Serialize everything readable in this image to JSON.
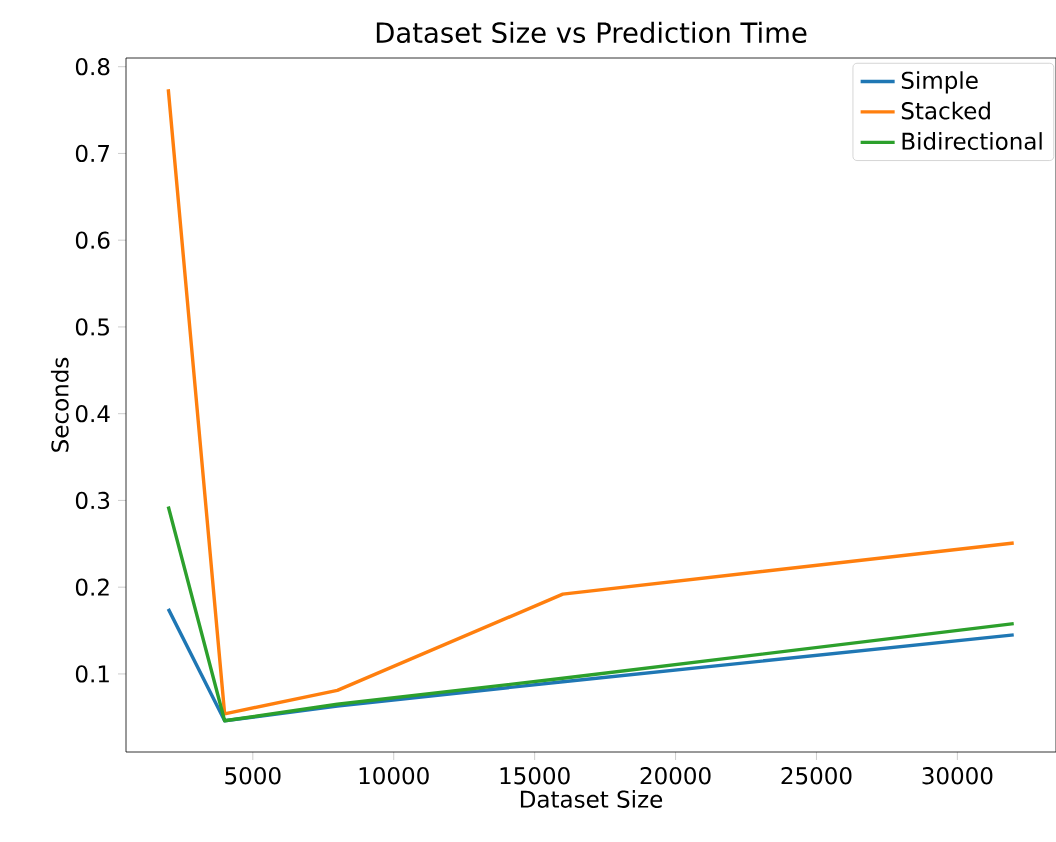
{
  "chart_data": {
    "type": "line",
    "title": "Dataset Size vs Prediction Time",
    "xlabel": "Dataset Size",
    "ylabel": "Seconds",
    "x": [
      2000,
      4000,
      8000,
      16000,
      32000
    ],
    "series": [
      {
        "name": "Simple",
        "color": "#1f77b4",
        "values": [
          0.175,
          0.046,
          0.063,
          0.091,
          0.145
        ]
      },
      {
        "name": "Stacked",
        "color": "#ff7f0e",
        "values": [
          0.774,
          0.054,
          0.081,
          0.192,
          0.251
        ]
      },
      {
        "name": "Bidirectional",
        "color": "#2ca02c",
        "values": [
          0.293,
          0.046,
          0.065,
          0.095,
          0.158
        ]
      }
    ],
    "xlim": [
      500,
      33500
    ],
    "xticks": [
      5000,
      10000,
      15000,
      20000,
      25000,
      30000
    ],
    "ylim": [
      0.01,
      0.81
    ],
    "yticks": [
      0.1,
      0.2,
      0.3,
      0.4,
      0.5,
      0.6,
      0.7,
      0.8
    ],
    "legend": "top right",
    "grid": false,
    "marker": "none",
    "line_style": "solid"
  }
}
